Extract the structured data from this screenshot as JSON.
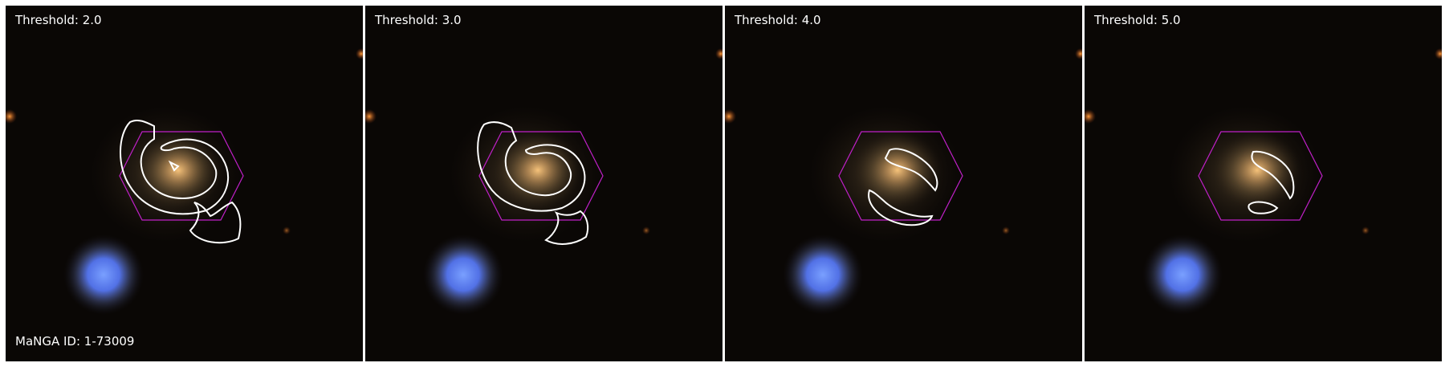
{
  "panels": [
    {
      "label": "Threshold: 2.0"
    },
    {
      "label": "Threshold: 3.0"
    },
    {
      "label": "Threshold: 4.0"
    },
    {
      "label": "Threshold: 5.0"
    }
  ],
  "manga_id_label": "MaNGA ID: 1-73009",
  "colors": {
    "contour": "#ffffff",
    "hexagon": "#c020c8",
    "background": "#0a0705",
    "star_blue": "#5a7dff"
  }
}
